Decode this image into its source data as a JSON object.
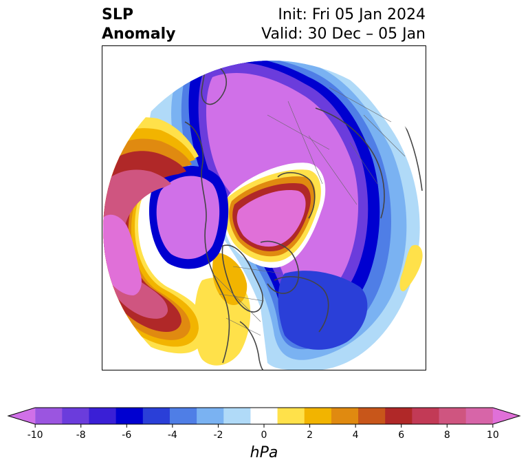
{
  "header": {
    "title_line1": "SLP",
    "title_line2": "Anomaly",
    "init_text": "Init: Fri 05 Jan 2024",
    "valid_text": "Valid: 30 Dec – 05 Jan"
  },
  "colorbar": {
    "unit_label": "hPa",
    "ticks": [
      "-10",
      "-8",
      "-6",
      "-4",
      "-2",
      "0",
      "2",
      "4",
      "6",
      "8",
      "10"
    ],
    "colors": [
      "#d070e8",
      "#9b55e0",
      "#6b3cdc",
      "#3a1fd6",
      "#0000d0",
      "#2a3fd8",
      "#4f7ee6",
      "#7ab2f2",
      "#b0daf8",
      "#ffffff",
      "#ffe14a",
      "#f2b400",
      "#e08a10",
      "#c8561a",
      "#b02828",
      "#c23a56",
      "#cf5580",
      "#d765a8",
      "#e070d8"
    ]
  },
  "map": {
    "projection": "north-polar-stereographic",
    "highs": [
      "north-pacific-gulf-of-alaska",
      "arctic-ocean-siberia",
      "western-north-america",
      "greenland-north-atlantic-fringe"
    ],
    "lows": [
      "northern-eurasia-arctic-belt",
      "eastern-pacific-west-coast",
      "north-atlantic-eastern-canada",
      "hudson-bay-canada"
    ]
  }
}
